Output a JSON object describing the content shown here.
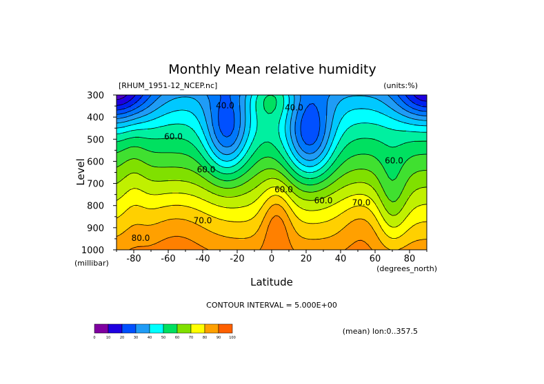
{
  "chart_data": {
    "type": "contour",
    "title": "Monthly Mean relative humidity",
    "dataset": "[RHUM_1951-12_NCEP.nc]",
    "units": "(units:%)",
    "xlabel": "Latitude",
    "x_units": "(degrees_north)",
    "ylabel": "Level",
    "y_units": "(millibar)",
    "xlim": [
      -90,
      90
    ],
    "ylim": [
      1000,
      300
    ],
    "x_ticks": [
      "-80",
      "-60",
      "-40",
      "-20",
      "0",
      "20",
      "40",
      "60",
      "80"
    ],
    "x_tick_values": [
      -80,
      -60,
      -40,
      -20,
      0,
      20,
      40,
      60,
      80
    ],
    "y_ticks": [
      "300",
      "400",
      "500",
      "600",
      "700",
      "800",
      "900",
      "1000"
    ],
    "y_tick_values": [
      300,
      400,
      500,
      600,
      700,
      800,
      900,
      1000
    ],
    "contour_interval_text": "CONTOUR INTERVAL = 5.000E+00",
    "footer_text": "(mean) lon:0..357.5",
    "colorbar": {
      "labels": [
        "0",
        "10",
        "20",
        "30",
        "40",
        "50",
        "60",
        "70",
        "80",
        "90",
        "100"
      ],
      "colors": [
        "#7f00a0",
        "#1e00e0",
        "#0050ff",
        "#1f9cf6",
        "#00ffff",
        "#00e060",
        "#80e000",
        "#ffff00",
        "#ffa000",
        "#ff6000",
        "#ff0000"
      ]
    },
    "contour_labels": [
      {
        "text": "40.0",
        "x": -27,
        "y": 360
      },
      {
        "text": "40.0",
        "x": 13,
        "y": 370
      },
      {
        "text": "60.0",
        "x": -57,
        "y": 500
      },
      {
        "text": "60.0",
        "x": -38,
        "y": 650
      },
      {
        "text": "60.0",
        "x": 7,
        "y": 740
      },
      {
        "text": "60.0",
        "x": 30,
        "y": 790
      },
      {
        "text": "60.0",
        "x": 71,
        "y": 610
      },
      {
        "text": "70.0",
        "x": -40,
        "y": 880
      },
      {
        "text": "70.0",
        "x": 52,
        "y": 800
      },
      {
        "text": "80.0",
        "x": -76,
        "y": 960
      }
    ]
  }
}
